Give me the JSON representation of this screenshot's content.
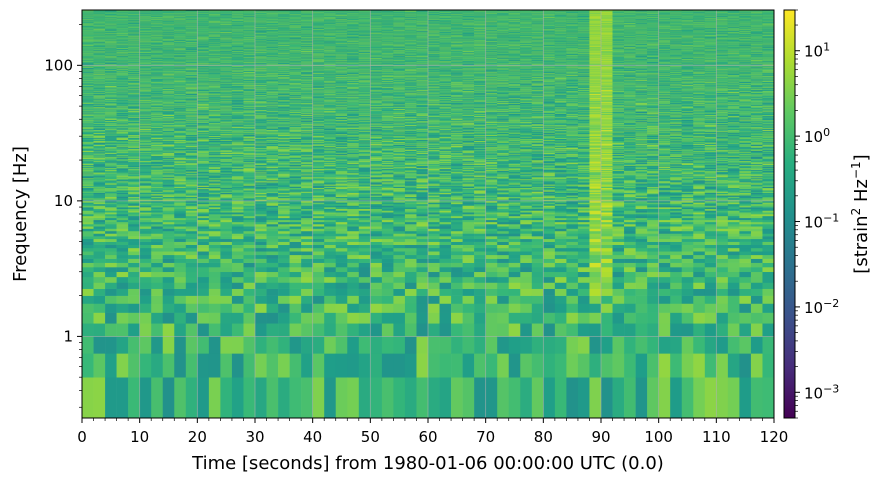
{
  "chart_data": {
    "type": "heatmap",
    "title": "",
    "xlabel": "Time [seconds] from 1980-01-06 00:00:00 UTC (0.0)",
    "ylabel": "Frequency [Hz]",
    "xlim": [
      0,
      120
    ],
    "ylim": [
      0.25,
      256
    ],
    "yscale": "log",
    "x_ticks": [
      "0",
      "10",
      "20",
      "30",
      "40",
      "50",
      "60",
      "70",
      "80",
      "90",
      "100",
      "110",
      "120"
    ],
    "x_tick_values": [
      0,
      10,
      20,
      30,
      40,
      50,
      60,
      70,
      80,
      90,
      100,
      110,
      120
    ],
    "y_ticks": [
      "1",
      "10",
      "100"
    ],
    "y_tick_values": [
      1,
      10,
      100
    ],
    "grid": true,
    "colormap": "viridis",
    "colorbar": {
      "label_base": "[strain",
      "label_sup1": "2",
      "label_mid": " Hz",
      "label_sup2": "−1",
      "label_end": "]",
      "scale": "log",
      "range": [
        0.0005,
        30
      ],
      "ticks": [
        {
          "base": "10",
          "exp": "1",
          "value": 10
        },
        {
          "base": "10",
          "exp": "0",
          "value": 1
        },
        {
          "base": "10",
          "exp": "−1",
          "value": 0.1
        },
        {
          "base": "10",
          "exp": "−2",
          "value": 0.01
        },
        {
          "base": "10",
          "exp": "−3",
          "value": 0.001
        }
      ]
    },
    "time_bins": 60,
    "time_bin_width_s": 2,
    "frequency_resolution_hz": 0.25,
    "background_level": 0.8,
    "features": [
      {
        "name": "broadband transient",
        "t_start": 88,
        "t_end": 92,
        "f_min": 2,
        "f_max": 256,
        "peak_level": 15
      },
      {
        "name": "low-frequency excess",
        "t_start": 106,
        "t_end": 112,
        "f_min": 0.25,
        "f_max": 0.75,
        "peak_level": 8
      }
    ]
  }
}
